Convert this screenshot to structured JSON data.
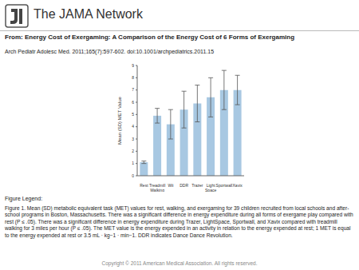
{
  "header": {
    "brand": "The JAMA Network"
  },
  "source": {
    "from_label": "From:",
    "title": "Energy Cost of Exergaming:  A Comparison of the Energy Cost of 6 Forms of Exergaming",
    "citation": "Arch Pediatr Adolesc Med. 2011;165(7):597-602. doi:10.1001/archpediatrics.2011.15"
  },
  "figure_legend": {
    "heading": "Figure Legend:",
    "text": "Figure 1. Mean (SD) metabolic equivalent task (MET) values for rest, walking, and exergaming for 39 children recruited from local schools and after-school programs in Boston, Massachusetts. There was a significant difference in energy expenditure during all forms of exergame play compared with rest (P ≤ .05). There was a significant difference in energy expenditure during Trazer, LightSpace, Sportwall, and Xavix compared with treadmill walking for 3 miles per hour (P ≤ .05). The MET value is the energy expended in an activity in relation to the energy expended at rest; 1 MET is equal to the energy expended at rest or 3.5 mL · kg−1 · min−1. DDR indicates Dance Dance Revolution."
  },
  "copyright": "Copyright © 2011 American Medical Association. All rights reserved.",
  "chart_data": {
    "type": "bar",
    "y_label": "Mean (SD) MET Value",
    "categories": [
      "Rest",
      "Treadmill Walking",
      "Wii",
      "DDR",
      "Trazer",
      "Light Space",
      "Sportwall",
      "Xavix"
    ],
    "values": [
      1.1,
      4.9,
      4.2,
      5.4,
      5.9,
      6.4,
      7.0,
      7.0
    ],
    "errors": [
      0.1,
      0.6,
      1.2,
      1.5,
      1.5,
      1.6,
      1.6,
      1.2
    ],
    "color": "#a8c8e2",
    "ylim": [
      0,
      9
    ],
    "yticks": [
      0,
      1,
      2,
      3,
      4,
      5,
      6,
      7,
      8,
      9
    ],
    "grid": false
  }
}
